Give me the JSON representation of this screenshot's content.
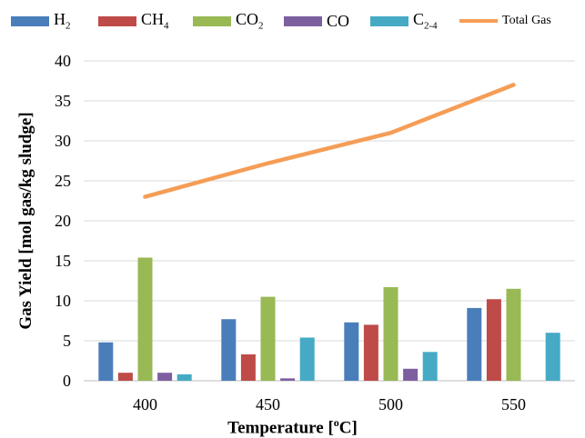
{
  "chart_data": {
    "type": "bar",
    "xlabel_prefix": "Temperature [",
    "xlabel_sup": "o",
    "xlabel_suffix": "C]",
    "ylabel": "Gas Yield [mol gas/kg sludge]",
    "categories": [
      "400",
      "450",
      "500",
      "550"
    ],
    "ylim": [
      0,
      40
    ],
    "yticks": [
      0,
      5,
      10,
      15,
      20,
      25,
      30,
      35,
      40
    ],
    "grid": true,
    "legend_position": "top",
    "series": [
      {
        "name": "H",
        "sub": "2",
        "color": "#4a7ebb",
        "values": [
          4.8,
          7.7,
          7.3,
          9.1
        ]
      },
      {
        "name": "CH",
        "sub": "4",
        "color": "#be4b48",
        "values": [
          1.0,
          3.3,
          7.0,
          10.2
        ]
      },
      {
        "name": "CO",
        "sub": "2",
        "color": "#98b954",
        "values": [
          15.4,
          10.5,
          11.7,
          11.5
        ]
      },
      {
        "name": "CO",
        "sub": "",
        "color": "#7d5fa0",
        "values": [
          1.0,
          0.3,
          1.5,
          0
        ]
      },
      {
        "name": "C",
        "sub": "2-4",
        "color": "#46aac5",
        "values": [
          0.8,
          5.4,
          3.6,
          6.0
        ]
      }
    ],
    "line_series": {
      "name": "Total Gas",
      "color": "#f59d56",
      "values": [
        23.0,
        27.2,
        31.0,
        37.0
      ]
    }
  }
}
